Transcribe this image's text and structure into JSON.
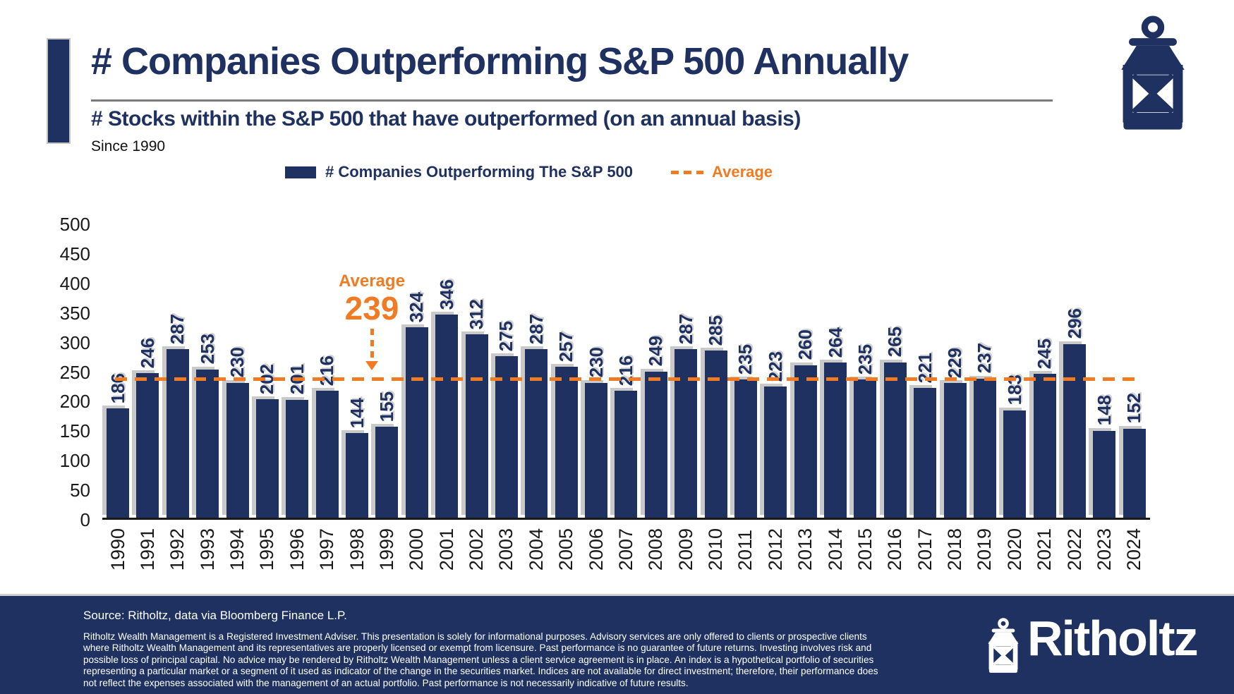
{
  "header": {
    "title": "# Companies Outperforming S&P 500 Annually",
    "subtitle": "# Stocks within the S&P 500 that have outperformed (on an annual basis)",
    "since": "Since 1990"
  },
  "legend": {
    "series_label": "# Companies Outperforming The S&P 500",
    "average_label": "Average"
  },
  "annotation": {
    "label": "Average",
    "value": "239"
  },
  "chart_data": {
    "type": "bar",
    "title": "# Companies Outperforming S&P 500 Annually",
    "series_name": "# Companies Outperforming The S&P 500",
    "categories": [
      1990,
      1991,
      1992,
      1993,
      1994,
      1995,
      1996,
      1997,
      1998,
      1999,
      2000,
      2001,
      2002,
      2003,
      2004,
      2005,
      2006,
      2007,
      2008,
      2009,
      2010,
      2011,
      2012,
      2013,
      2014,
      2015,
      2016,
      2017,
      2018,
      2019,
      2020,
      2021,
      2022,
      2023,
      2024
    ],
    "values": [
      186,
      246,
      287,
      253,
      230,
      202,
      201,
      216,
      144,
      155,
      324,
      346,
      312,
      275,
      287,
      257,
      230,
      216,
      249,
      287,
      285,
      235,
      223,
      260,
      264,
      235,
      265,
      221,
      229,
      237,
      183,
      245,
      296,
      148,
      152
    ],
    "average": 239,
    "ylim": [
      0,
      500
    ],
    "yticks": [
      0,
      50,
      100,
      150,
      200,
      250,
      300,
      350,
      400,
      450,
      500
    ],
    "x_label_rotation_deg": 90,
    "bar_label_rotation_deg": 90,
    "grid": false,
    "legend_position": "top",
    "bar_color": "#1F3161",
    "average_color": "#F07B23"
  },
  "footer": {
    "source": "Source: Ritholtz, data via Bloomberg Finance L.P.",
    "disclaimer": "Ritholtz Wealth Management is a Registered Investment Adviser. This presentation is solely for informational purposes. Advisory services are only offered to clients or prospective clients where Ritholtz Wealth Management and its representatives are properly licensed or exempt from licensure. Past performance is no guarantee of future returns. Investing involves risk and possible loss of principal capital. No advice may be rendered by Ritholtz Wealth Management unless a client service agreement is in place. An index is a hypothetical portfolio of securities representing a particular market or a segment of it used as indicator of the change in the securities market. Indices are not available for direct investment; therefore, their performance does not reflect the expenses associated with the management of an actual portfolio. Past performance is not necessarily indicative of future results.",
    "brand": "Ritholtz"
  },
  "colors": {
    "navy": "#1F3161",
    "orange": "#F07B23"
  }
}
